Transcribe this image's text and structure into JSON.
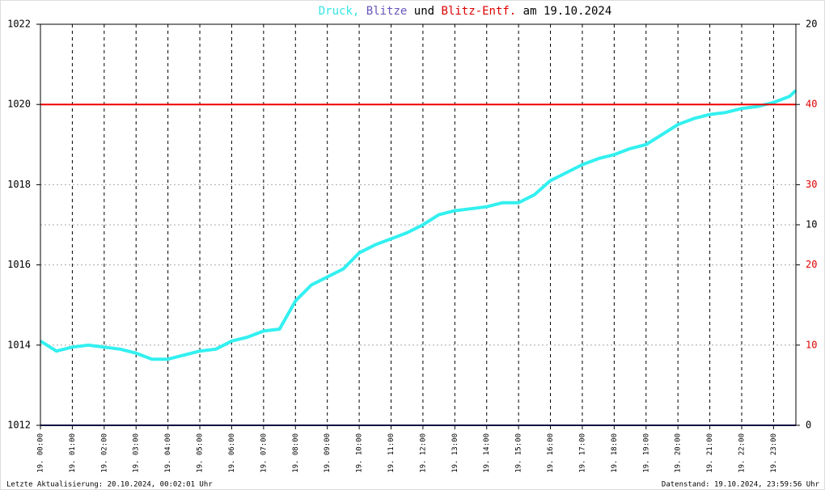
{
  "chart_data": {
    "type": "line",
    "title_parts": [
      {
        "text": "Druck,",
        "color": "#33e6e6"
      },
      {
        "text": "Blitze",
        "color": "#6655bb"
      },
      {
        "text": "und",
        "color": "#000000"
      },
      {
        "text": "Blitz-Entf.",
        "color": "#dd0000"
      },
      {
        "text": "am 19.10.2024",
        "color": "#000000"
      }
    ],
    "xlim": [
      0,
      23.7
    ],
    "xticks": [
      {
        "value": 0,
        "label": "19. 00:00"
      },
      {
        "value": 1,
        "label": "19. 01:00"
      },
      {
        "value": 2,
        "label": "19. 02:00"
      },
      {
        "value": 3,
        "label": "19. 03:00"
      },
      {
        "value": 4,
        "label": "19. 04:00"
      },
      {
        "value": 5,
        "label": "19. 05:00"
      },
      {
        "value": 6,
        "label": "19. 06:00"
      },
      {
        "value": 7,
        "label": "19. 07:00"
      },
      {
        "value": 8,
        "label": "19. 08:00"
      },
      {
        "value": 9,
        "label": "19. 09:00"
      },
      {
        "value": 10,
        "label": "19. 10:00"
      },
      {
        "value": 11,
        "label": "19. 11:00"
      },
      {
        "value": 12,
        "label": "19. 12:00"
      },
      {
        "value": 13,
        "label": "19. 13:00"
      },
      {
        "value": 14,
        "label": "19. 14:00"
      },
      {
        "value": 15,
        "label": "19. 15:00"
      },
      {
        "value": 16,
        "label": "19. 16:00"
      },
      {
        "value": 17,
        "label": "19. 17:00"
      },
      {
        "value": 18,
        "label": "19. 18:00"
      },
      {
        "value": 19,
        "label": "19. 19:00"
      },
      {
        "value": 20,
        "label": "19. 20:00"
      },
      {
        "value": 21,
        "label": "19. 21:00"
      },
      {
        "value": 22,
        "label": "19. 22:00"
      },
      {
        "value": 23,
        "label": "19. 23:00"
      }
    ],
    "ylim": [
      1012,
      1022
    ],
    "yticks": [
      1012,
      1014,
      1016,
      1018,
      1020,
      1022
    ],
    "y2lim": [
      0,
      20
    ],
    "y2ticks": [
      0,
      10,
      20
    ],
    "y2_color": "#000000",
    "y3lim": [
      0,
      50
    ],
    "y3ticks": [
      10,
      20,
      30,
      40
    ],
    "y3_color": "#dd0000",
    "grid": true,
    "series": [
      {
        "name": "Druck",
        "color": "#33f0f0",
        "axis": "y",
        "x": [
          0,
          0.5,
          1,
          1.5,
          2,
          2.5,
          3,
          3.5,
          4,
          4.5,
          5,
          5.5,
          6,
          6.5,
          7,
          7.5,
          8,
          8.5,
          9,
          9.5,
          10,
          10.5,
          11,
          11.5,
          12,
          12.5,
          13,
          13.5,
          14,
          14.5,
          15,
          15.5,
          16,
          16.5,
          17,
          17.5,
          18,
          18.5,
          19,
          19.5,
          20,
          20.5,
          21,
          21.5,
          22,
          22.5,
          23,
          23.5,
          23.7
        ],
        "values": [
          1014.1,
          1013.85,
          1013.95,
          1014.0,
          1013.95,
          1013.9,
          1013.8,
          1013.65,
          1013.65,
          1013.75,
          1013.85,
          1013.9,
          1014.1,
          1014.2,
          1014.35,
          1014.4,
          1015.1,
          1015.5,
          1015.7,
          1015.9,
          1016.3,
          1016.5,
          1016.65,
          1016.8,
          1017.0,
          1017.25,
          1017.35,
          1017.4,
          1017.45,
          1017.55,
          1017.55,
          1017.75,
          1018.1,
          1018.3,
          1018.5,
          1018.65,
          1018.75,
          1018.9,
          1019.0,
          1019.25,
          1019.5,
          1019.65,
          1019.75,
          1019.8,
          1019.9,
          1019.95,
          1020.05,
          1020.2,
          1020.35
        ]
      },
      {
        "name": "Blitze",
        "color": "#1a1a80",
        "axis": "y2",
        "x": [
          0,
          23.7
        ],
        "values": [
          0,
          0
        ]
      },
      {
        "name": "Blitz-Entf.",
        "color": "#ee0000",
        "axis": "y3",
        "x": [
          0,
          23.7
        ],
        "values": [
          40,
          40
        ]
      }
    ],
    "footer_left": "Letzte Aktualisierung: 20.10.2024, 00:02:01 Uhr",
    "footer_right": "Datenstand: 19.10.2024, 23:59:56 Uhr"
  }
}
